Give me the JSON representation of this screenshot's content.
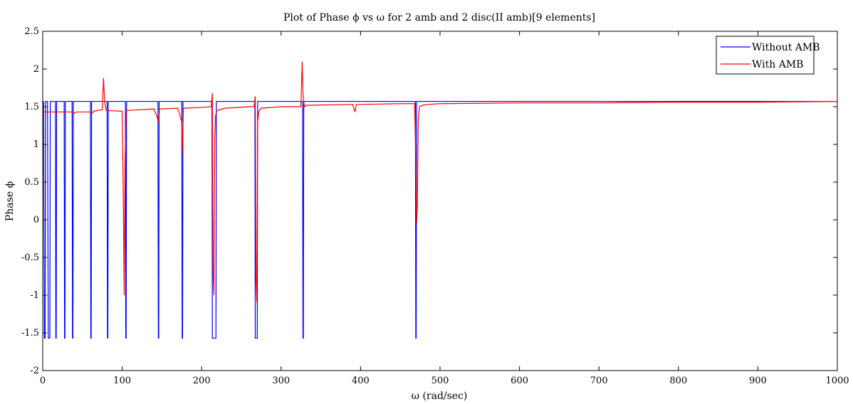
{
  "chart_data": {
    "type": "line",
    "title": "Plot of Phase ϕ vs ω for 2 amb and 2 disc(II amb)[9 elements]",
    "xlabel": "ω (rad/sec)",
    "ylabel": "Phase ϕ",
    "xlim": [
      0,
      1000
    ],
    "ylim": [
      -2,
      2.5
    ],
    "xticks": [
      0,
      100,
      200,
      300,
      400,
      500,
      600,
      700,
      800,
      900,
      1000
    ],
    "yticks": [
      -2,
      -1.5,
      -1,
      -0.5,
      0,
      0.5,
      1,
      1.5,
      2,
      2.5
    ],
    "xtick_labels": [
      "0",
      "100",
      "200",
      "300",
      "400",
      "500",
      "600",
      "700",
      "800",
      "900",
      "1000"
    ],
    "ytick_labels": [
      "-2",
      "-1.5",
      "-1",
      "-0.5",
      "0",
      "0.5",
      "1",
      "1.5",
      "2",
      "2.5"
    ],
    "grid": false,
    "legend_position": "top-right",
    "series": [
      {
        "name": "Without AMB",
        "color": "#0000ff",
        "x": [
          0,
          1,
          2,
          3,
          3.5,
          4,
          5,
          6,
          7,
          8,
          9,
          9.5,
          10,
          11,
          16,
          16.5,
          17,
          17.5,
          18,
          19,
          27,
          27.5,
          28,
          28.5,
          29,
          30,
          37,
          37.5,
          38,
          38.5,
          39,
          40,
          60,
          60.5,
          61,
          61.5,
          62,
          63,
          81,
          81.5,
          82,
          82.5,
          83,
          84,
          104,
          104.5,
          105,
          105.5,
          106,
          107,
          145,
          145.5,
          146,
          146.5,
          147,
          148,
          175,
          175.5,
          176,
          176.5,
          177,
          178,
          213,
          213.5,
          214,
          218,
          218.5,
          219,
          220,
          267,
          267.5,
          268,
          270,
          270.5,
          271,
          272,
          327,
          327.5,
          328,
          328.5,
          329,
          330,
          469,
          469.5,
          470,
          470.5,
          471,
          472,
          480,
          1000
        ],
        "y": [
          1.57,
          1.57,
          -1.57,
          -1.57,
          1.57,
          1.57,
          1.57,
          1.57,
          -1.57,
          -1.57,
          -1.57,
          1.57,
          1.57,
          1.57,
          1.57,
          -1.57,
          -1.57,
          1.57,
          1.57,
          1.57,
          1.57,
          -1.57,
          -1.57,
          1.57,
          1.57,
          1.57,
          1.57,
          -1.57,
          -1.57,
          1.57,
          1.57,
          1.57,
          1.57,
          -1.57,
          -1.57,
          1.57,
          1.57,
          1.57,
          1.57,
          -1.57,
          -1.57,
          1.57,
          1.57,
          1.57,
          1.57,
          -1.57,
          -1.57,
          1.57,
          1.57,
          1.57,
          1.57,
          -1.57,
          -1.57,
          1.57,
          1.57,
          1.57,
          1.57,
          -1.57,
          -1.57,
          1.57,
          1.57,
          1.57,
          1.57,
          -1.57,
          -1.57,
          -1.57,
          1.57,
          1.57,
          1.57,
          1.57,
          -1.57,
          -1.57,
          -1.57,
          1.57,
          1.57,
          1.57,
          1.57,
          -1.57,
          -1.57,
          1.57,
          1.57,
          1.57,
          1.57,
          -1.57,
          -1.57,
          1.57,
          1.57,
          1.57,
          1.57,
          1.57
        ]
      },
      {
        "name": "With AMB",
        "color": "#ff0000",
        "x": [
          0,
          20,
          38,
          40,
          42,
          60,
          62,
          64,
          75,
          76.5,
          78,
          80,
          100,
          101.5,
          102.5,
          103.5,
          105,
          106,
          140,
          146,
          147,
          170,
          175,
          176,
          177,
          178,
          200,
          212,
          213.5,
          214.5,
          215.5,
          216.5,
          217.5,
          219,
          222,
          230,
          260,
          266,
          267.5,
          268.5,
          269.5,
          270.5,
          272,
          275,
          300,
          325,
          326.5,
          327.5,
          328.5,
          330,
          332,
          340,
          390,
          393,
          394,
          395,
          398,
          400,
          450,
          468,
          469.5,
          470.5,
          471.5,
          472.5,
          474,
          478,
          485,
          500,
          600,
          700,
          800,
          900,
          1000
        ],
        "y": [
          1.43,
          1.43,
          1.43,
          1.41,
          1.43,
          1.43,
          1.41,
          1.44,
          1.46,
          1.88,
          1.55,
          1.45,
          1.44,
          0.2,
          -1.0,
          0.8,
          1.43,
          1.45,
          1.47,
          1.3,
          1.47,
          1.48,
          1.3,
          0.9,
          1.46,
          1.48,
          1.49,
          1.5,
          1.68,
          -0.75,
          -1.0,
          1.1,
          1.38,
          1.44,
          1.46,
          1.48,
          1.5,
          1.5,
          1.64,
          -0.8,
          -1.1,
          1.3,
          1.44,
          1.48,
          1.5,
          1.5,
          2.1,
          1.7,
          1.55,
          1.5,
          1.52,
          1.52,
          1.53,
          1.43,
          1.49,
          1.53,
          1.53,
          1.53,
          1.54,
          1.54,
          0.8,
          -0.05,
          0.2,
          1.3,
          1.5,
          1.52,
          1.53,
          1.54,
          1.55,
          1.55,
          1.56,
          1.56,
          1.57
        ]
      }
    ]
  }
}
